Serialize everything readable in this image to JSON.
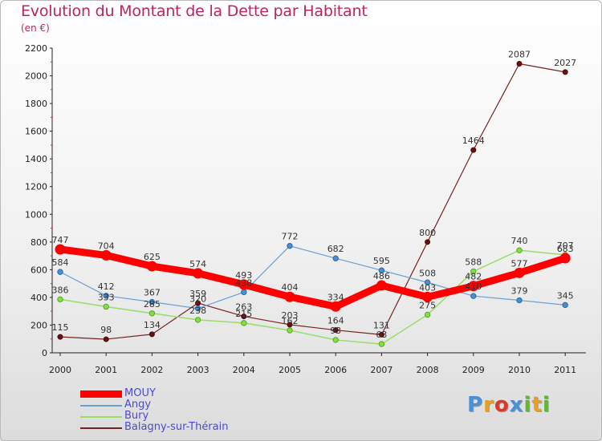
{
  "title": "Evolution du Montant de la Dette par Habitant",
  "subtitle": "(en €)",
  "logo": {
    "text": "Proxiti",
    "letters": [
      "P",
      "r",
      "o",
      "x",
      "i",
      "t",
      "i"
    ],
    "colors": [
      "#4a90d9",
      "#e8a020",
      "#d93a2a",
      "#4a90d9",
      "#5fb832",
      "#e8a020",
      "#5fb832"
    ]
  },
  "chart_data": {
    "type": "line",
    "title": "Evolution du Montant de la Dette par Habitant",
    "ylabel": "(en €)",
    "xlabel": "",
    "x": [
      "2000",
      "2001",
      "2002",
      "2003",
      "2004",
      "2005",
      "2006",
      "2007",
      "2008",
      "2009",
      "2010",
      "2011"
    ],
    "ylim": [
      0,
      2200
    ],
    "yticks": [
      0,
      200,
      400,
      600,
      800,
      1000,
      1200,
      1400,
      1600,
      1800,
      2000,
      2200
    ],
    "grid": false,
    "legend_position": "bottom-left",
    "series": [
      {
        "name": "MOUY",
        "color": "#ff0000",
        "values": [
          747,
          704,
          625,
          574,
          493,
          404,
          334,
          486,
          403,
          482,
          577,
          683
        ],
        "labels": [
          "747",
          "704",
          "625",
          "574",
          "493",
          "404",
          "334",
          "486",
          "403",
          "482",
          "577",
          "683"
        ]
      },
      {
        "name": "Angy",
        "color": "#6a9fd0",
        "values": [
          584,
          412,
          367,
          320,
          438,
          772,
          682,
          595,
          508,
          410,
          379,
          345
        ],
        "labels": [
          "584",
          "412",
          "367",
          "320",
          "438",
          "772",
          "682",
          "595",
          "508",
          "410",
          "379",
          "345"
        ]
      },
      {
        "name": "Bury",
        "color": "#99dd66",
        "values": [
          386,
          333,
          285,
          238,
          215,
          162,
          93,
          63,
          275,
          588,
          740,
          707
        ],
        "labels": [
          "386",
          "333",
          "285",
          "238",
          "215",
          "162",
          "93",
          "63",
          "275",
          "588",
          "740",
          "707"
        ]
      },
      {
        "name": "Balagny-sur-Thérain",
        "color": "#7a2222",
        "values": [
          115,
          98,
          134,
          359,
          263,
          203,
          164,
          131,
          800,
          1464,
          2087,
          2027
        ],
        "labels": [
          "115",
          "98",
          "134",
          "359",
          "263",
          "203",
          "164",
          "131",
          "800",
          "1464",
          "2087",
          "2027"
        ]
      }
    ]
  }
}
